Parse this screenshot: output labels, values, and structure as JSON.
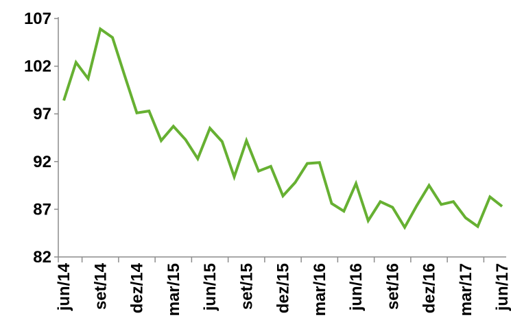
{
  "chart_data": {
    "type": "line",
    "title": "",
    "xlabel": "",
    "ylabel": "",
    "ylim": [
      82,
      107
    ],
    "yticks": [
      82,
      87,
      92,
      97,
      102,
      107
    ],
    "grid": false,
    "legend": "none",
    "x_tick_labels": [
      "jun/14",
      "set/14",
      "dez/14",
      "mar/15",
      "jun/15",
      "set/15",
      "dez/15",
      "mar/16",
      "jun/16",
      "set/16",
      "dez/16",
      "mar/17",
      "jun/17"
    ],
    "x": [
      "jun/14",
      "jul/14",
      "ago/14",
      "set/14",
      "out/14",
      "nov/14",
      "dez/14",
      "jan/15",
      "fev/15",
      "mar/15",
      "abr/15",
      "mai/15",
      "jun/15",
      "jul/15",
      "ago/15",
      "set/15",
      "out/15",
      "nov/15",
      "dez/15",
      "jan/16",
      "fev/16",
      "mar/16",
      "abr/16",
      "mai/16",
      "jun/16",
      "jul/16",
      "ago/16",
      "set/16",
      "out/16",
      "nov/16",
      "dez/16",
      "jan/17",
      "fev/17",
      "mar/17",
      "abr/17",
      "mai/17",
      "jun/17"
    ],
    "series": [
      {
        "color": "#66b032",
        "values": [
          98.4,
          102.4,
          100.7,
          105.9,
          105.0,
          101.0,
          97.1,
          97.3,
          94.2,
          95.7,
          94.3,
          92.3,
          95.5,
          94.1,
          90.4,
          94.2,
          91.0,
          91.5,
          88.4,
          89.8,
          91.8,
          91.9,
          87.6,
          86.8,
          89.7,
          85.8,
          87.8,
          87.2,
          85.1,
          87.4,
          89.5,
          87.5,
          87.8,
          86.1,
          85.2,
          88.3,
          87.3
        ]
      }
    ]
  }
}
